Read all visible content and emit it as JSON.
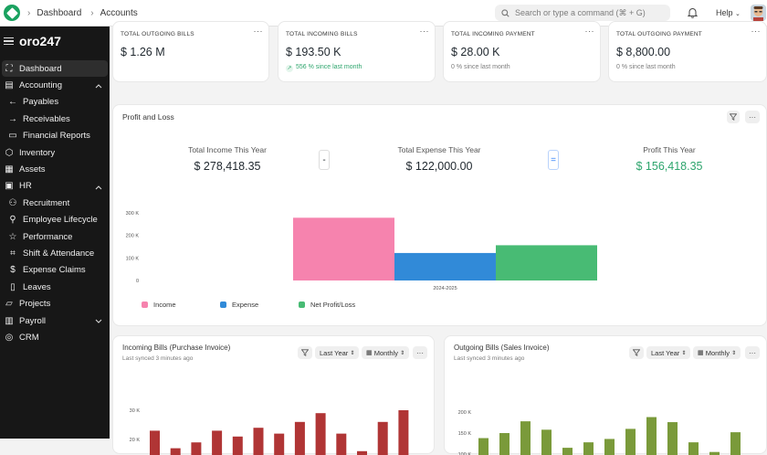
{
  "breadcrumbs": [
    "Dashboard",
    "Accounts"
  ],
  "search": {
    "placeholder": "Search or type a command (⌘ + G)"
  },
  "help_label": "Help",
  "brand": "oro247",
  "nav": [
    {
      "label": "Dashboard",
      "icon": "dashboard-icon",
      "active": true,
      "sub": false
    },
    {
      "label": "Accounting",
      "icon": "accounting-icon",
      "sub": false,
      "chevron": "up"
    },
    {
      "label": "Payables",
      "icon": "arrow-left-icon",
      "sub": true
    },
    {
      "label": "Receivables",
      "icon": "arrow-right-icon",
      "sub": true
    },
    {
      "label": "Financial Reports",
      "icon": "file-icon",
      "sub": true
    },
    {
      "label": "Inventory",
      "icon": "box-icon",
      "sub": false
    },
    {
      "label": "Assets",
      "icon": "assets-icon",
      "sub": false
    },
    {
      "label": "HR",
      "icon": "hr-icon",
      "sub": false,
      "chevron": "up"
    },
    {
      "label": "Recruitment",
      "icon": "recruitment-icon",
      "sub": true
    },
    {
      "label": "Employee Lifecycle",
      "icon": "user-icon",
      "sub": true
    },
    {
      "label": "Performance",
      "icon": "star-icon",
      "sub": true
    },
    {
      "label": "Shift & Attendance",
      "icon": "attendance-icon",
      "sub": true
    },
    {
      "label": "Expense Claims",
      "icon": "expense-icon",
      "sub": true
    },
    {
      "label": "Leaves",
      "icon": "leaves-icon",
      "sub": true
    },
    {
      "label": "Projects",
      "icon": "folder-icon",
      "sub": false
    },
    {
      "label": "Payroll",
      "icon": "payroll-icon",
      "sub": false,
      "chevron": "down"
    },
    {
      "label": "CRM",
      "icon": "crm-icon",
      "sub": false
    }
  ],
  "number_cards": [
    {
      "label": "TOTAL OUTGOING BILLS",
      "value": "$ 1.26 M",
      "sub": ""
    },
    {
      "label": "TOTAL INCOMING BILLS",
      "value": "$ 193.50 K",
      "sub": "556 % since last month",
      "trend": "up"
    },
    {
      "label": "TOTAL INCOMING PAYMENT",
      "value": "$ 28.00 K",
      "sub": "0 % since last month"
    },
    {
      "label": "TOTAL OUTGOING PAYMENT",
      "value": "$ 8,800.00",
      "sub": "0 % since last month"
    }
  ],
  "profit_loss": {
    "title": "Profit and Loss",
    "income_label": "Total Income This Year",
    "income_value": "$ 278,418.35",
    "expense_label": "Total Expense This Year",
    "expense_value": "$ 122,000.00",
    "profit_label": "Profit This Year",
    "profit_value": "$ 156,418.35",
    "minus": "-",
    "equals": "="
  },
  "incoming_bills": {
    "title": "Incoming Bills (Purchase Invoice)",
    "synced": "Last synced 3 minutes ago",
    "range": "Last Year",
    "interval": "Monthly"
  },
  "outgoing_bills": {
    "title": "Outgoing Bills (Sales Invoice)",
    "synced": "Last synced 3 minutes ago",
    "range": "Last Year",
    "interval": "Monthly"
  },
  "colors": {
    "income": "#f683ae",
    "expense": "#318ad8",
    "profit": "#48bb74",
    "incoming_bar": "#b03535",
    "outgoing_bar": "#7a9a3a"
  },
  "chart_data": [
    {
      "type": "bar",
      "categories": [
        "2024-2025"
      ],
      "series": [
        {
          "name": "Income",
          "values": [
            278418.35
          ]
        },
        {
          "name": "Expense",
          "values": [
            122000
          ]
        },
        {
          "name": "Net Profit/Loss",
          "values": [
            156418.35
          ]
        }
      ],
      "yticks": [
        "0",
        "100 K",
        "200 K",
        "300 K"
      ],
      "ylim": [
        0,
        300000
      ],
      "legend": "bottom-left"
    },
    {
      "type": "bar",
      "values": [
        23,
        17,
        19,
        23,
        21,
        24,
        22,
        26,
        29,
        22,
        16,
        26,
        30
      ],
      "yticks": [
        "20 K",
        "30 K"
      ],
      "ylim": [
        0,
        30
      ]
    },
    {
      "type": "bar",
      "values": [
        138,
        150,
        178,
        158,
        115,
        128,
        136,
        160,
        188,
        176,
        128,
        105,
        152
      ],
      "yticks": [
        "100 K",
        "150 K",
        "200 K"
      ],
      "ylim": [
        0,
        200
      ]
    }
  ]
}
